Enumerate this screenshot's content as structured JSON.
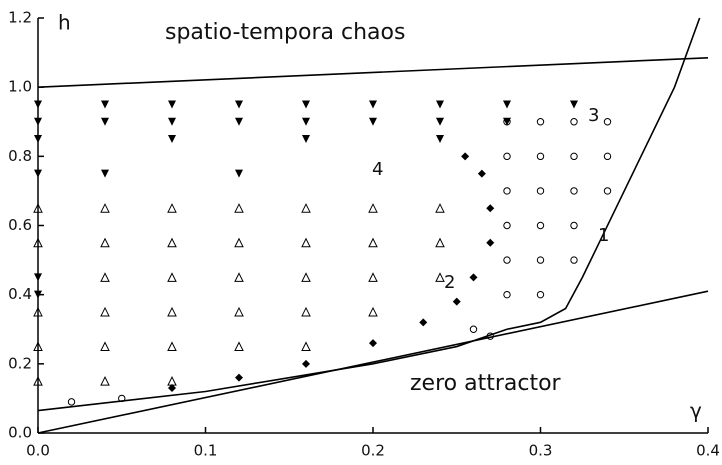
{
  "chart_data": {
    "type": "scatter",
    "xlabel": "γ",
    "ylabel": "h",
    "xlim": [
      0,
      0.4
    ],
    "ylim": [
      0,
      1.2
    ],
    "xticks": [
      {
        "value": 0,
        "label": "0.0"
      },
      0.1,
      0.2,
      0.3,
      0.4
    ],
    "yticks": [
      {
        "value": 0,
        "label": "0.0"
      },
      0.2,
      0.4,
      0.6,
      0.8,
      {
        "value": 1,
        "label": "1.0"
      },
      1.2
    ],
    "annotations": [
      "spatio-tempora chaos",
      "zero attractor",
      "1",
      "2",
      "3",
      "4"
    ],
    "series": [
      {
        "style": "line",
        "color": "#000",
        "x": [
          0,
          0.4
        ],
        "y": [
          1.0,
          1.085
        ]
      },
      {
        "style": "line",
        "color": "#000",
        "x": [
          0,
          0.1,
          0.2,
          0.25,
          0.28,
          0.3,
          0.315,
          0.325,
          0.335,
          0.35,
          0.365,
          0.38,
          0.395
        ],
        "y": [
          0.065,
          0.12,
          0.2,
          0.25,
          0.3,
          0.32,
          0.36,
          0.45,
          0.55,
          0.7,
          0.85,
          1.0,
          1.2
        ]
      },
      {
        "style": "line",
        "color": "#000",
        "x": [
          0,
          0.4
        ],
        "y": [
          0,
          0.41
        ]
      },
      {
        "style": "marker",
        "marker": "v",
        "color": "#000",
        "x": [
          0,
          0.04,
          0.08,
          0.12,
          0.16,
          0.2,
          0.24,
          0.28,
          0.32,
          0,
          0.04,
          0.08,
          0.12,
          0.16,
          0.2,
          0.24,
          0.28,
          0,
          0.08,
          0.16,
          0.24,
          0,
          0.04,
          0.12,
          0,
          0
        ],
        "y": [
          0.95,
          0.95,
          0.95,
          0.95,
          0.95,
          0.95,
          0.95,
          0.95,
          0.95,
          0.9,
          0.9,
          0.9,
          0.9,
          0.9,
          0.9,
          0.9,
          0.9,
          0.85,
          0.85,
          0.85,
          0.85,
          0.75,
          0.75,
          0.75,
          0.45,
          0.4
        ]
      },
      {
        "style": "marker",
        "marker": "^",
        "color": "#000",
        "x": [
          0,
          0.04,
          0.08,
          0.12,
          0.16,
          0.2,
          0.24,
          0,
          0.04,
          0.08,
          0.12,
          0.16,
          0.2,
          0.24,
          0.04,
          0.08,
          0.12,
          0.16,
          0.2,
          0.24,
          0,
          0.04,
          0.08,
          0.12,
          0.16,
          0.2,
          0,
          0.04,
          0.08,
          0.12,
          0.16,
          0,
          0.04,
          0.08
        ],
        "y": [
          0.65,
          0.65,
          0.65,
          0.65,
          0.65,
          0.65,
          0.65,
          0.55,
          0.55,
          0.55,
          0.55,
          0.55,
          0.55,
          0.55,
          0.45,
          0.45,
          0.45,
          0.45,
          0.45,
          0.45,
          0.35,
          0.35,
          0.35,
          0.35,
          0.35,
          0.35,
          0.25,
          0.25,
          0.25,
          0.25,
          0.25,
          0.15,
          0.15,
          0.15
        ]
      },
      {
        "style": "marker",
        "marker": "o",
        "color": "#000",
        "x": [
          0.28,
          0.3,
          0.32,
          0.28,
          0.3,
          0.32,
          0.34,
          0.28,
          0.3,
          0.32,
          0.34,
          0.28,
          0.3,
          0.32,
          0.28,
          0.3,
          0.32,
          0.28,
          0.3,
          0.34,
          0.02,
          0.05,
          0.26,
          0.27
        ],
        "y": [
          0.9,
          0.9,
          0.9,
          0.8,
          0.8,
          0.8,
          0.8,
          0.7,
          0.7,
          0.7,
          0.7,
          0.6,
          0.6,
          0.6,
          0.5,
          0.5,
          0.5,
          0.4,
          0.4,
          0.9,
          0.09,
          0.1,
          0.3,
          0.28
        ]
      },
      {
        "style": "marker",
        "marker": "D",
        "color": "#000",
        "x": [
          0.08,
          0.12,
          0.16,
          0.2,
          0.23,
          0.25,
          0.26,
          0.27,
          0.27,
          0.265,
          0.255
        ],
        "y": [
          0.13,
          0.16,
          0.2,
          0.26,
          0.32,
          0.38,
          0.45,
          0.55,
          0.65,
          0.75,
          0.8
        ]
      }
    ]
  }
}
